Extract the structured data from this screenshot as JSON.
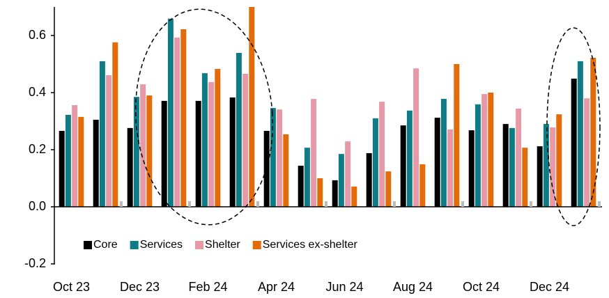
{
  "chart_data": {
    "type": "bar",
    "categories": [
      "Oct 23",
      null,
      "Dec 23",
      null,
      "Feb 24",
      null,
      "Apr 24",
      null,
      "Jun 24",
      null,
      "Aug 24",
      null,
      "Oct 24",
      null,
      "Dec 24",
      null
    ],
    "series": [
      {
        "name": "Core",
        "color": "#000000",
        "values": [
          0.266,
          0.305,
          0.276,
          0.371,
          0.371,
          0.383,
          0.266,
          0.144,
          0.093,
          0.188,
          0.285,
          0.312,
          0.268,
          0.29,
          0.212,
          0.449
        ]
      },
      {
        "name": "Services",
        "color": "#0f7b84",
        "values": [
          0.322,
          0.51,
          0.385,
          0.659,
          0.468,
          0.539,
          0.346,
          0.207,
          0.185,
          0.31,
          0.337,
          0.378,
          0.359,
          0.276,
          0.29,
          0.51
        ]
      },
      {
        "name": "Shelter",
        "color": "#e899a8",
        "values": [
          0.356,
          0.461,
          0.429,
          0.593,
          0.437,
          0.466,
          0.341,
          0.378,
          0.229,
          0.368,
          0.485,
          0.271,
          0.395,
          0.344,
          0.278,
          0.38
        ]
      },
      {
        "name": "Services ex-shelter",
        "color": "#e36c0a",
        "values": [
          0.315,
          0.576,
          0.39,
          0.622,
          0.483,
          0.705,
          0.254,
          0.1,
          0.071,
          0.124,
          0.149,
          0.5,
          0.4,
          0.207,
          0.324,
          0.522
        ]
      }
    ],
    "ylim": [
      -0.2,
      0.7
    ],
    "yticks": [
      -0.2,
      {
        "value": 0,
        "label": "0.0"
      },
      0.2,
      0.4,
      0.6
    ],
    "legend": "bottom-left"
  }
}
